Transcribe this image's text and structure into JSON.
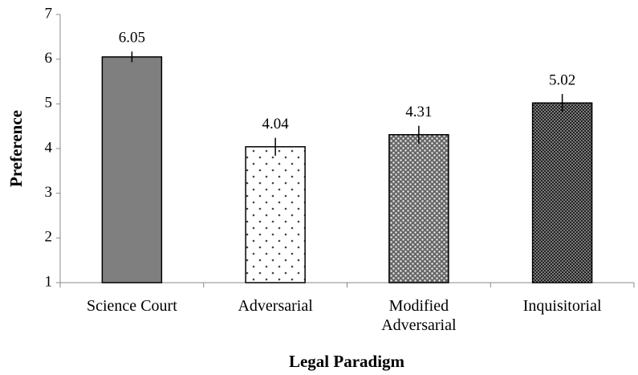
{
  "chart_data": {
    "type": "bar",
    "categories": [
      "Science Court",
      "Adversarial",
      "Modified Adversarial",
      "Inquisitorial"
    ],
    "values": [
      6.05,
      4.04,
      4.31,
      5.02
    ],
    "errors": [
      0.12,
      0.2,
      0.2,
      0.2
    ],
    "xlabel": "Legal Paradigm",
    "ylabel": "Preference",
    "ylim": [
      1,
      7
    ],
    "yticks": [
      1,
      2,
      3,
      4,
      5,
      6,
      7
    ],
    "grid": false
  }
}
